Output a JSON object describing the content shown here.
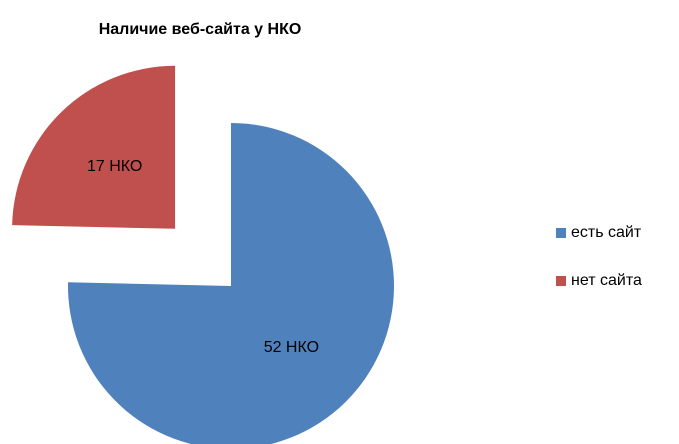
{
  "chart_data": {
    "type": "pie",
    "title": "Наличие веб-сайта у НКО",
    "categories": [
      "есть сайт",
      "нет сайта"
    ],
    "values": [
      52,
      17
    ],
    "value_labels": [
      "52 НКО",
      "17 НКО"
    ],
    "colors": [
      "#4f81bd",
      "#c0504d"
    ],
    "legend": "right"
  }
}
